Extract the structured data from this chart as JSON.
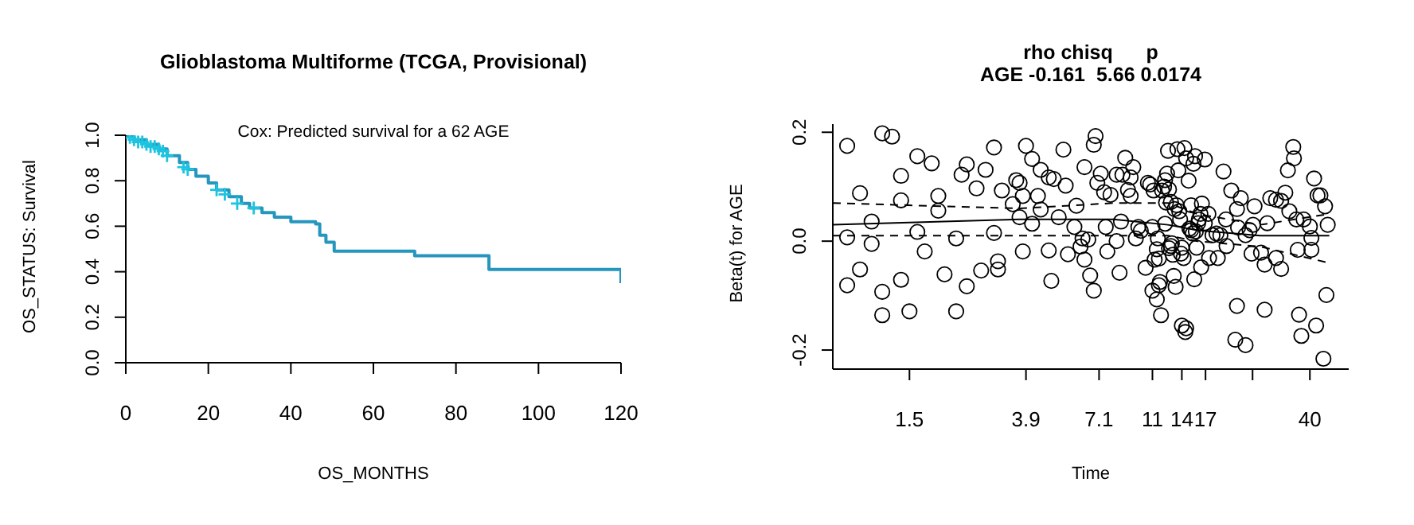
{
  "chart_data": [
    {
      "type": "step",
      "title": "Glioblastoma Multiforme (TCGA, Provisional)",
      "xlabel": "OS_MONTHS",
      "ylabel": "OS_STATUS: Survival",
      "annotations": [
        "Cox: Predicted survival for a 62 AGE"
      ],
      "xlim": [
        0,
        120
      ],
      "ylim": [
        0,
        1
      ],
      "xticks": [
        0,
        20,
        40,
        60,
        80,
        100,
        120
      ],
      "yticks": [
        {
          "value": 0,
          "label": "0.0"
        },
        {
          "value": 0.2,
          "label": "0.2"
        },
        {
          "value": 0.4,
          "label": "0.4"
        },
        {
          "value": 0.6,
          "label": "0.6"
        },
        {
          "value": 0.8,
          "label": "0.8"
        },
        {
          "value": 1,
          "label": "1.0"
        }
      ],
      "series": [
        {
          "color": "#2596be",
          "x": [
            0,
            2,
            5,
            8,
            10,
            13,
            15,
            17,
            20,
            22,
            25,
            28,
            30,
            33,
            36,
            40,
            46,
            47,
            48.5,
            50.5,
            70,
            88,
            120
          ],
          "values": [
            1.0,
            0.98,
            0.96,
            0.94,
            0.91,
            0.88,
            0.85,
            0.82,
            0.79,
            0.76,
            0.73,
            0.7,
            0.68,
            0.66,
            0.64,
            0.62,
            0.61,
            0.56,
            0.53,
            0.49,
            0.47,
            0.41,
            0.35
          ]
        },
        {
          "type": "scatter",
          "marker": "cross",
          "color": "#1cc4e0",
          "x": [
            1,
            2,
            3,
            4,
            5,
            6,
            7,
            8,
            9,
            10,
            14,
            15,
            22,
            24,
            27,
            31
          ],
          "values": [
            0.99,
            0.98,
            0.97,
            0.97,
            0.96,
            0.95,
            0.95,
            0.94,
            0.93,
            0.91,
            0.86,
            0.85,
            0.76,
            0.74,
            0.7,
            0.68
          ]
        }
      ]
    },
    {
      "type": "scatter",
      "title": "rho chisq      p",
      "subtitle": "AGE -0.161  5.66 0.0174",
      "xlabel": "Time",
      "ylabel": "Beta(t) for AGE",
      "log": "x",
      "xlim": [
        0.8,
        55
      ],
      "ylim": [
        -0.235,
        0.215
      ],
      "xticks": [
        1.5,
        3.9,
        7.1,
        11,
        14,
        17,
        {
          "value": 25,
          "label": null
        },
        40
      ],
      "yticks": [
        {
          "value": -0.2,
          "label": "-0.2"
        },
        {
          "value": 0,
          "label": "0.0"
        },
        {
          "value": 0.2,
          "label": "0.2"
        }
      ],
      "series": [
        {
          "marker": "circle",
          "color": "#000000",
          "x": [
            0.9,
            1.2,
            1.3,
            1.0,
            1.1,
            1.1,
            0.9,
            0.9,
            1.0,
            1.2,
            1.2,
            1.5,
            2.2,
            1.4,
            1.4,
            1.6,
            1.8,
            1.9,
            1.9,
            1.4,
            1.6,
            1.7,
            2.0,
            2.2,
            2.4,
            2.3,
            2.6,
            2.4,
            2.7,
            3.0,
            2.8,
            3.0,
            3.1,
            3.2,
            3.1,
            3.5,
            3.6,
            3.7,
            3.8,
            3.7,
            3.8,
            3.9,
            4.1,
            4.3,
            4.4,
            4.4,
            4.1,
            4.7,
            4.9,
            5.3,
            5.1,
            5.4,
            4.7,
            4.8,
            5.5,
            5.8,
            5.9,
            6.1,
            6.2,
            6.3,
            6.5,
            6.6,
            6.8,
            6.9,
            6.3,
            7.0,
            7.2,
            7.4,
            7.8,
            7.5,
            6.8,
            7.6,
            8.2,
            8.6,
            8.8,
            9.0,
            9.2,
            9.4,
            9.2,
            8.5,
            8.2,
            8.4,
            9.8,
            10.0,
            9.6,
            10.4,
            10.6,
            10.8,
            11.1,
            11.0,
            11.0,
            11.2,
            11.4,
            11.5,
            11.6,
            11.4,
            11.6,
            11.7,
            11.8,
            11.9,
            12.1,
            12.2,
            12.2,
            12.3,
            12.4,
            12.6,
            12.5,
            12.6,
            12.8,
            13.2,
            13.4,
            13.7,
            13.8,
            13.5,
            13.6,
            14.3,
            14.5,
            14.8,
            15.1,
            15.4,
            15.6,
            15.7,
            15.3,
            15.1,
            14.9,
            16.0,
            16.1,
            16.3,
            16.5,
            16.9,
            16.9,
            17.4,
            18.0,
            18.6,
            19.2,
            19.7,
            20.1,
            21.0,
            22.0,
            22.7,
            22.2,
            23.6,
            24.4,
            25.1,
            25.4,
            28.2,
            28.9,
            30.3,
            31.6,
            32.7,
            33.8,
            33.4,
            35.1,
            34.9,
            35.8,
            38.0,
            40.0,
            40.5,
            41.4,
            42.6,
            43.6,
            45.3,
            46.3,
            12.8,
            13.0,
            14.0,
            14.2,
            13.9,
            15.8,
            16.4,
            17.5,
            18.8,
            20.2,
            24.8,
            26.8,
            27.6,
            30.3,
            31.6,
            36.2,
            40.5,
            13.1,
            13.3,
            15.5,
            14.0,
            14.5,
            14.4,
            22.0,
            27.6,
            36.6,
            37.3,
            21.7,
            23.6,
            42.1,
            45.8,
            44.7,
            12.9
          ],
          "values": [
            0.175,
            0.198,
            0.192,
            0.088,
            0.036,
            -0.005,
            0.007,
            -0.081,
            -0.052,
            -0.093,
            -0.136,
            -0.129,
            -0.129,
            0.075,
            0.12,
            0.156,
            0.143,
            0.083,
            0.056,
            -0.071,
            0.017,
            -0.019,
            -0.061,
            0.005,
            0.141,
            0.122,
            0.097,
            -0.083,
            -0.054,
            0.172,
            0.131,
            0.015,
            -0.037,
            0.093,
            -0.052,
            0.068,
            0.112,
            0.107,
            0.083,
            0.044,
            -0.019,
            0.175,
            0.151,
            0.083,
            0.058,
            0.131,
            0.032,
            0.117,
            0.114,
            0.168,
            0.044,
            0.102,
            -0.017,
            -0.073,
            -0.024,
            0.026,
            0.065,
            -0.01,
            0.005,
            -0.034,
            0.003,
            -0.063,
            0.177,
            0.193,
            0.136,
            0.107,
            0.124,
            0.09,
            0.085,
            0.026,
            -0.091,
            -0.019,
            0.122,
            0.122,
            0.153,
            0.094,
            0.117,
            0.136,
            0.083,
            0.036,
            0.0,
            -0.058,
            0.026,
            0.019,
            0.005,
            -0.049,
            0.107,
            0.104,
            0.093,
            0.026,
            -0.091,
            -0.034,
            -0.015,
            0.005,
            -0.032,
            -0.107,
            -0.081,
            -0.075,
            -0.136,
            0.093,
            0.1,
            0.112,
            0.032,
            0.071,
            0.124,
            -0.013,
            0.166,
            0.095,
            0.072,
            0.059,
            0.066,
            0.055,
            0.04,
            0.169,
            0.13,
            0.171,
            0.152,
            0.111,
            0.066,
            0.142,
            0.156,
            0.018,
            0.014,
            0.02,
            0.023,
            0.033,
            0.04,
            0.05,
            0.069,
            0.15,
            0.033,
            0.05,
            0.011,
            0.014,
            0.011,
            0.128,
            0.04,
            0.093,
            0.059,
            0.079,
            0.025,
            0.011,
            0.02,
            0.03,
            0.064,
            0.033,
            0.079,
            0.076,
            0.074,
            0.089,
            0.055,
            0.13,
            0.152,
            0.173,
            0.04,
            0.04,
            0.027,
            0.006,
            0.115,
            0.084,
            0.084,
            0.064,
            0.03,
            -0.009,
            -0.025,
            -0.012,
            -0.031,
            -0.023,
            -0.012,
            -0.048,
            -0.031,
            -0.031,
            -0.009,
            -0.023,
            -0.021,
            -0.043,
            -0.031,
            -0.051,
            -0.016,
            -0.016,
            -0.064,
            -0.084,
            -0.07,
            -0.155,
            -0.16,
            -0.167,
            -0.119,
            -0.126,
            -0.135,
            -0.174,
            -0.181,
            -0.191,
            -0.155,
            -0.099,
            -0.216,
            -0.004
          ]
        },
        {
          "type": "line",
          "color": "#000000",
          "line_style": "solid",
          "x": [
            0.8,
            3.7,
            8.0,
            12.5,
            15.9,
            26.6,
            46.9
          ],
          "values": [
            0.03,
            0.04,
            0.04,
            0.03,
            0.02,
            0.01,
            0.01
          ]
        },
        {
          "type": "line",
          "color": "#000000",
          "line_style": "dashed",
          "x": [
            0.8,
            3.7,
            8.0,
            12.5,
            15.9,
            26.6,
            46.9
          ],
          "values": [
            0.07,
            0.06,
            0.07,
            0.07,
            0.05,
            0.03,
            0.05
          ]
        },
        {
          "type": "line",
          "color": "#000000",
          "line_style": "dashed",
          "x": [
            0.8,
            3.7,
            8.0,
            12.5,
            15.9,
            26.6,
            46.9
          ],
          "values": [
            0.01,
            0.01,
            0.01,
            0.01,
            0.0,
            -0.01,
            -0.04
          ]
        }
      ]
    }
  ]
}
